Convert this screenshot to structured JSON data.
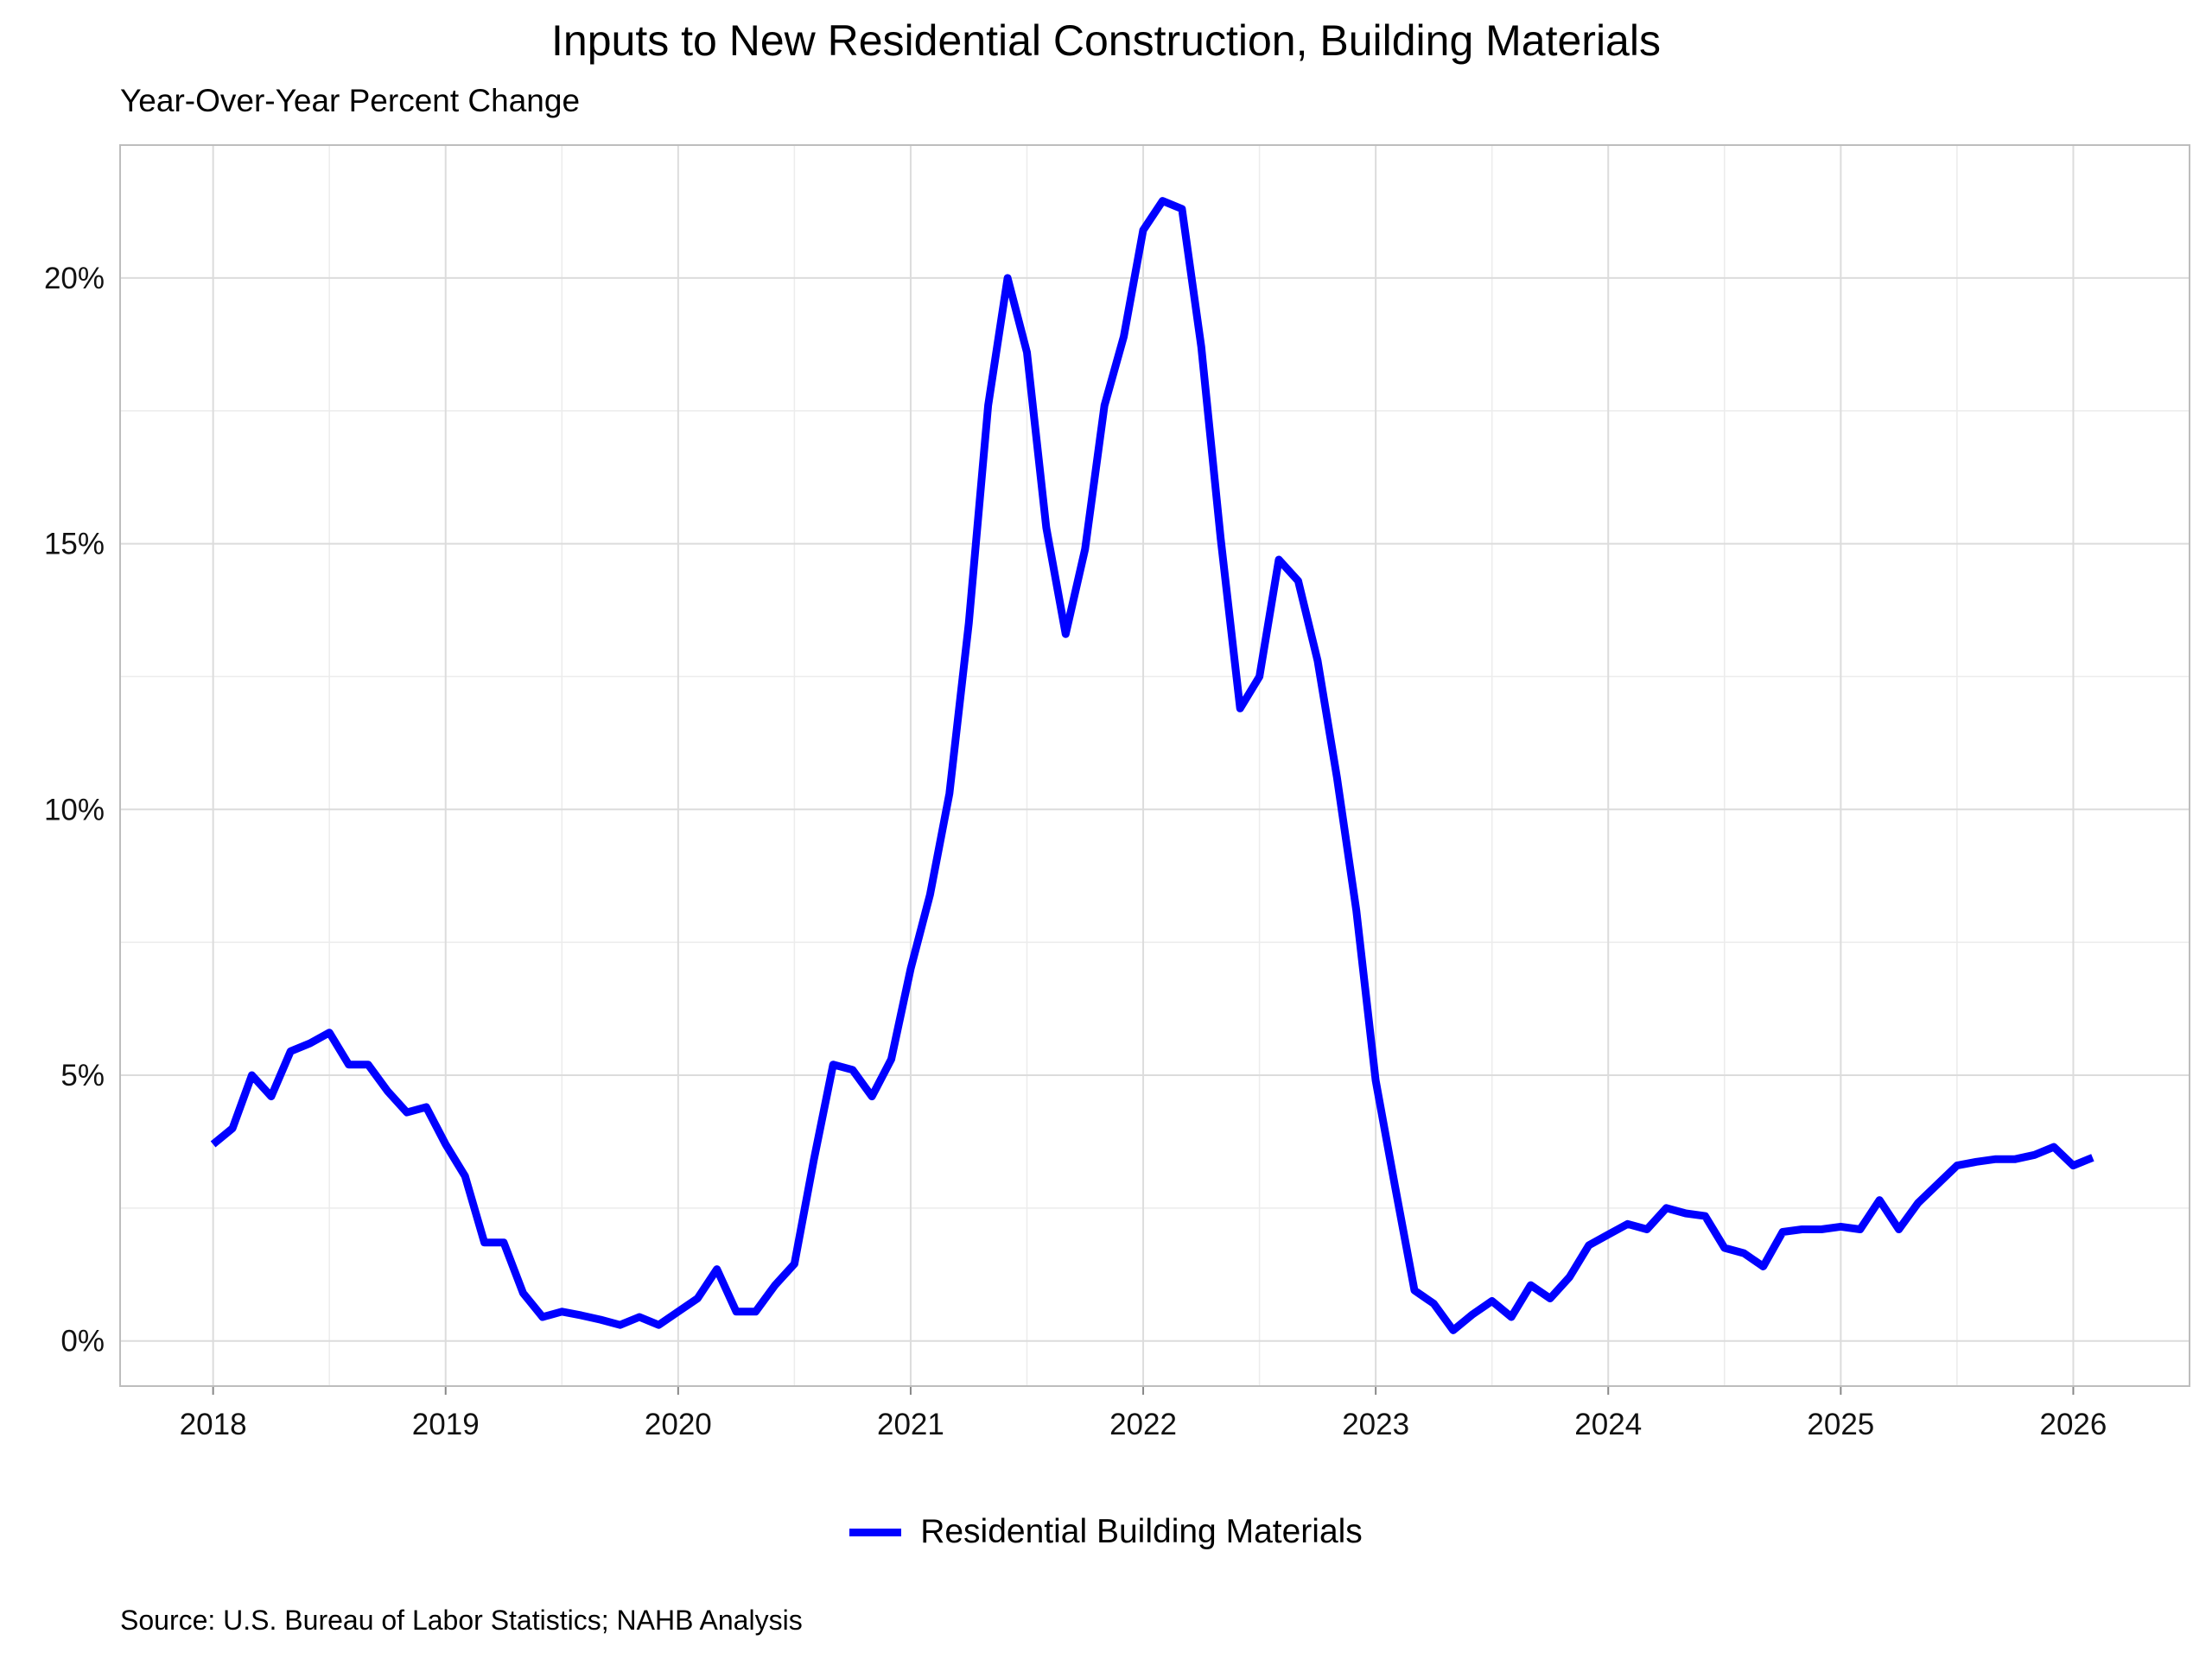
{
  "chart_data": {
    "type": "line",
    "title": "Inputs to New Residential Construction, Building Materials",
    "subtitle": "Year-Over-Year Percent Change",
    "source": "Source: U.S. Bureau of Labor Statistics; NAHB Analysis",
    "xlabel": "",
    "ylabel": "",
    "x_start": "2018-01",
    "x_frequency": "monthly",
    "xlim": [
      2017.6,
      2026.5
    ],
    "ylim": [
      -0.85,
      22.5
    ],
    "x_ticks": [
      2018,
      2019,
      2020,
      2021,
      2022,
      2023,
      2024,
      2025,
      2026
    ],
    "x_tick_labels": [
      "2018",
      "2019",
      "2020",
      "2021",
      "2022",
      "2023",
      "2024",
      "2025",
      "2026"
    ],
    "y_ticks": [
      0,
      5,
      10,
      15,
      20
    ],
    "y_tick_labels": [
      "0%",
      "5%",
      "10%",
      "15%",
      "20%"
    ],
    "grid": true,
    "legend_position": "bottom",
    "series": [
      {
        "name": "Residential Building Materials",
        "color": "#0000ff",
        "values": [
          3.7,
          4.0,
          5.0,
          4.6,
          5.45,
          5.6,
          5.8,
          5.2,
          5.2,
          4.7,
          4.3,
          4.4,
          3.7,
          3.1,
          1.85,
          1.85,
          0.9,
          0.45,
          0.55,
          0.48,
          0.4,
          0.3,
          0.45,
          0.3,
          0.55,
          0.8,
          1.35,
          0.55,
          0.55,
          1.05,
          1.45,
          3.4,
          5.2,
          5.1,
          4.6,
          5.3,
          7.0,
          8.4,
          10.3,
          13.5,
          17.6,
          20.0,
          18.6,
          15.3,
          13.3,
          14.9,
          17.6,
          18.9,
          20.9,
          21.45,
          21.3,
          18.7,
          15.1,
          11.9,
          12.5,
          14.7,
          14.3,
          12.8,
          10.6,
          8.1,
          4.9,
          2.9,
          0.95,
          0.7,
          0.2,
          0.5,
          0.75,
          0.45,
          1.05,
          0.8,
          1.2,
          1.8,
          2.0,
          2.2,
          2.1,
          2.5,
          2.4,
          2.35,
          1.75,
          1.65,
          1.4,
          2.05,
          2.1,
          2.1,
          2.15,
          2.1,
          2.65,
          2.1,
          2.6,
          2.95,
          3.3,
          3.37,
          3.42,
          3.42,
          3.5,
          3.65,
          3.3,
          3.45
        ]
      }
    ]
  }
}
